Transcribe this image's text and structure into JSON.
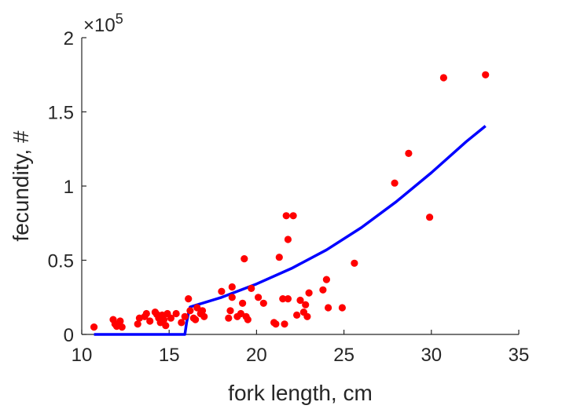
{
  "chart_data": {
    "type": "scatter",
    "xlabel": "fork length, cm",
    "ylabel": "fecundity, #",
    "xlim": [
      10,
      35
    ],
    "ylim": [
      0,
      200000
    ],
    "y_exponent_label": "×10",
    "y_exponent_power": "5",
    "x_ticks": [
      {
        "value": 10,
        "label": "10"
      },
      {
        "value": 15,
        "label": "15"
      },
      {
        "value": 20,
        "label": "20"
      },
      {
        "value": 25,
        "label": "25"
      },
      {
        "value": 30,
        "label": "30"
      },
      {
        "value": 35,
        "label": "35"
      }
    ],
    "y_ticks": [
      {
        "value": 0,
        "label": "0"
      },
      {
        "value": 50000,
        "label": "0.5"
      },
      {
        "value": 100000,
        "label": "1"
      },
      {
        "value": 150000,
        "label": "1.5"
      },
      {
        "value": 200000,
        "label": "2"
      }
    ],
    "grid": false,
    "series": [
      {
        "kind": "scatter",
        "color": "#ff0000",
        "points": [
          [
            10.7,
            5000
          ],
          [
            11.8,
            10000
          ],
          [
            11.9,
            7000
          ],
          [
            12.0,
            5500
          ],
          [
            12.2,
            9000
          ],
          [
            12.3,
            5000
          ],
          [
            13.2,
            7000
          ],
          [
            13.3,
            11000
          ],
          [
            13.6,
            12000
          ],
          [
            13.7,
            14000
          ],
          [
            13.9,
            9000
          ],
          [
            14.2,
            15000
          ],
          [
            14.3,
            13500
          ],
          [
            14.4,
            11000
          ],
          [
            14.5,
            8000
          ],
          [
            14.6,
            13000
          ],
          [
            14.7,
            10000
          ],
          [
            14.8,
            6000
          ],
          [
            14.9,
            14000
          ],
          [
            15.1,
            11000
          ],
          [
            15.4,
            14000
          ],
          [
            15.7,
            8000
          ],
          [
            15.9,
            12000
          ],
          [
            16.1,
            24000
          ],
          [
            16.2,
            16000
          ],
          [
            16.4,
            11000
          ],
          [
            16.5,
            10000
          ],
          [
            16.6,
            18000
          ],
          [
            16.8,
            14000
          ],
          [
            16.9,
            16000
          ],
          [
            17.0,
            12000
          ],
          [
            18.0,
            29000
          ],
          [
            18.4,
            11000
          ],
          [
            18.5,
            16000
          ],
          [
            18.6,
            32000
          ],
          [
            18.6,
            25000
          ],
          [
            18.9,
            12000
          ],
          [
            19.1,
            14000
          ],
          [
            19.2,
            21000
          ],
          [
            19.3,
            51000
          ],
          [
            19.4,
            12000
          ],
          [
            19.5,
            10000
          ],
          [
            19.7,
            31000
          ],
          [
            20.1,
            25000
          ],
          [
            20.4,
            21000
          ],
          [
            21.0,
            8000
          ],
          [
            21.1,
            7000
          ],
          [
            21.3,
            52000
          ],
          [
            21.5,
            24000
          ],
          [
            21.6,
            7000
          ],
          [
            21.7,
            80000
          ],
          [
            21.8,
            24000
          ],
          [
            21.8,
            64000
          ],
          [
            22.1,
            80000
          ],
          [
            22.3,
            13000
          ],
          [
            22.5,
            23000
          ],
          [
            22.7,
            15000
          ],
          [
            22.8,
            20000
          ],
          [
            22.9,
            12000
          ],
          [
            23.0,
            28000
          ],
          [
            23.8,
            30000
          ],
          [
            24.0,
            37000
          ],
          [
            24.1,
            18000
          ],
          [
            24.9,
            18000
          ],
          [
            25.6,
            48000
          ],
          [
            27.9,
            102000
          ],
          [
            28.7,
            122000
          ],
          [
            29.9,
            79000
          ],
          [
            30.7,
            173000
          ],
          [
            33.1,
            175000
          ]
        ]
      },
      {
        "kind": "line",
        "color": "#0000ff",
        "points": [
          [
            10.7,
            0
          ],
          [
            15.9,
            0
          ],
          [
            16.0,
            8000
          ],
          [
            16.1,
            14000
          ],
          [
            16.2,
            18500
          ],
          [
            18.0,
            25000
          ],
          [
            20.0,
            34000
          ],
          [
            22.0,
            44500
          ],
          [
            24.0,
            57000
          ],
          [
            26.0,
            72000
          ],
          [
            28.0,
            89500
          ],
          [
            30.0,
            109000
          ],
          [
            32.0,
            130000
          ],
          [
            33.1,
            140500
          ]
        ]
      }
    ]
  }
}
